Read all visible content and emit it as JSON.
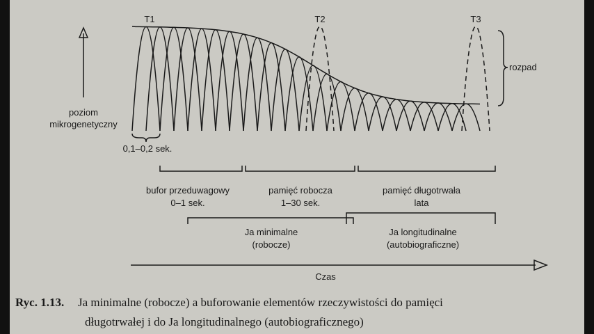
{
  "markers": [
    "T1",
    "T2",
    "T3"
  ],
  "decay_label": "rozpad",
  "y_axis_label": [
    "poziom",
    "mikrogenetyczny"
  ],
  "interval_label": "0,1–0,2 sek.",
  "memory_stages": [
    {
      "name": "bufor przeduwagowy",
      "duration": "0–1 sek."
    },
    {
      "name": "pamięć robocza",
      "duration": "1–30 sek."
    },
    {
      "name": "pamięć długotrwała",
      "duration": "lata"
    }
  ],
  "self_types": [
    {
      "name": "Ja minimalne",
      "note": "(robocze)"
    },
    {
      "name": "Ja longitudinalne",
      "note": "(autobiograficzne)"
    }
  ],
  "time_axis_label": "Czas",
  "caption": {
    "number": "Ryc. 1.13.",
    "lines": [
      "Ja minimalne (robocze) a buforowanie elementów rzeczywistości do pamięci",
      "długotrwałej i do Ja longitudinalnego (autobiograficznego)"
    ]
  }
}
